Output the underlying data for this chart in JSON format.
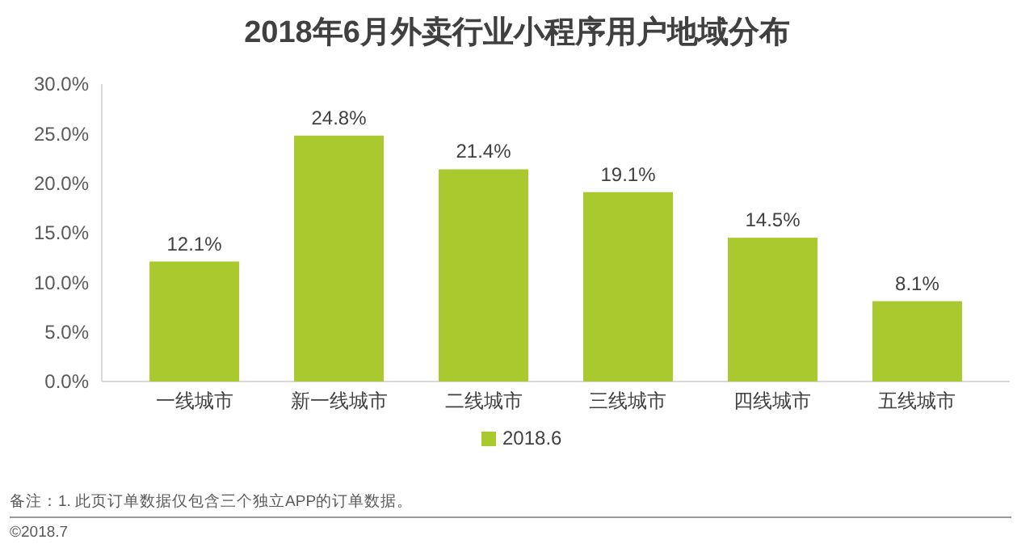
{
  "chart_data": {
    "type": "bar",
    "title": "2018年6月外卖行业小程序用户地域分布",
    "categories": [
      "一线城市",
      "新一线城市",
      "二线城市",
      "三线城市",
      "四线城市",
      "五线城市"
    ],
    "series": [
      {
        "name": "2018.6",
        "color": "#a9c92f",
        "values": [
          12.1,
          24.8,
          21.4,
          19.1,
          14.5,
          8.1
        ],
        "value_labels": [
          "12.1%",
          "24.8%",
          "21.4%",
          "19.1%",
          "14.5%",
          "8.1%"
        ]
      }
    ],
    "ylim": [
      0,
      30
    ],
    "yticks": [
      {
        "value": 0,
        "label": "0.0%"
      },
      {
        "value": 5,
        "label": "5.0%"
      },
      {
        "value": 10,
        "label": "10.0%"
      },
      {
        "value": 15,
        "label": "15.0%"
      },
      {
        "value": 20,
        "label": "20.0%"
      },
      {
        "value": 25,
        "label": "25.0%"
      },
      {
        "value": 30,
        "label": "30.0%"
      }
    ],
    "grid": false,
    "legend": "bottom",
    "annotations": [
      "备注：1. 此页订单数据仅包含三个独立APP的订单数据。",
      "©2018.7"
    ]
  }
}
